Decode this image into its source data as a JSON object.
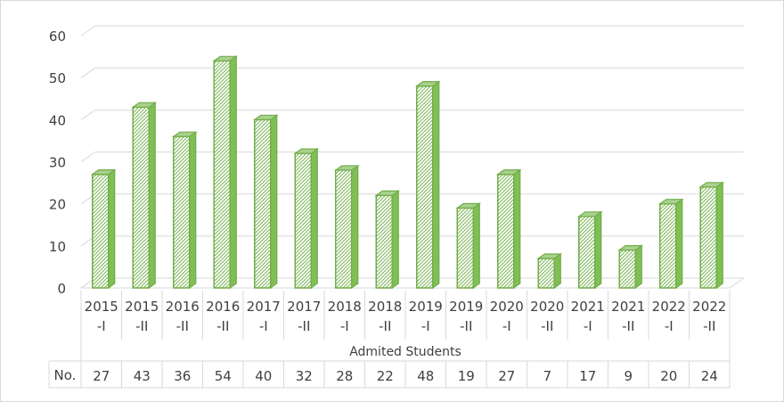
{
  "chart_data": {
    "type": "bar",
    "style": "3d-column",
    "categories": [
      [
        "2015",
        "-I"
      ],
      [
        "2015",
        "-II"
      ],
      [
        "2016",
        "-II"
      ],
      [
        "2016",
        "-II"
      ],
      [
        "2017",
        "-I"
      ],
      [
        "2017",
        "-II"
      ],
      [
        "2018",
        "-I"
      ],
      [
        "2018",
        "-II"
      ],
      [
        "2019",
        "-I"
      ],
      [
        "2019",
        "-II"
      ],
      [
        "2020",
        "-I"
      ],
      [
        "2020",
        "-II"
      ],
      [
        "2021",
        "-I"
      ],
      [
        "2021",
        "-II"
      ],
      [
        "2022",
        "-I"
      ],
      [
        "2022",
        "-II"
      ]
    ],
    "series": [
      {
        "name": "No.",
        "values": [
          27,
          43,
          36,
          54,
          40,
          32,
          28,
          22,
          48,
          19,
          27,
          7,
          17,
          9,
          20,
          24
        ]
      }
    ],
    "xlabel": "Admited Students",
    "ylim": [
      0,
      60
    ],
    "yticks": [
      0,
      10,
      20,
      30,
      40,
      50,
      60
    ],
    "grid": true,
    "data_table": true,
    "colors": {
      "bar_stroke": "#70ad47",
      "bar_fill": "#e2efd9",
      "hatch": "#70ad47",
      "grid": "#d9d9d9",
      "text": "#404040"
    }
  }
}
